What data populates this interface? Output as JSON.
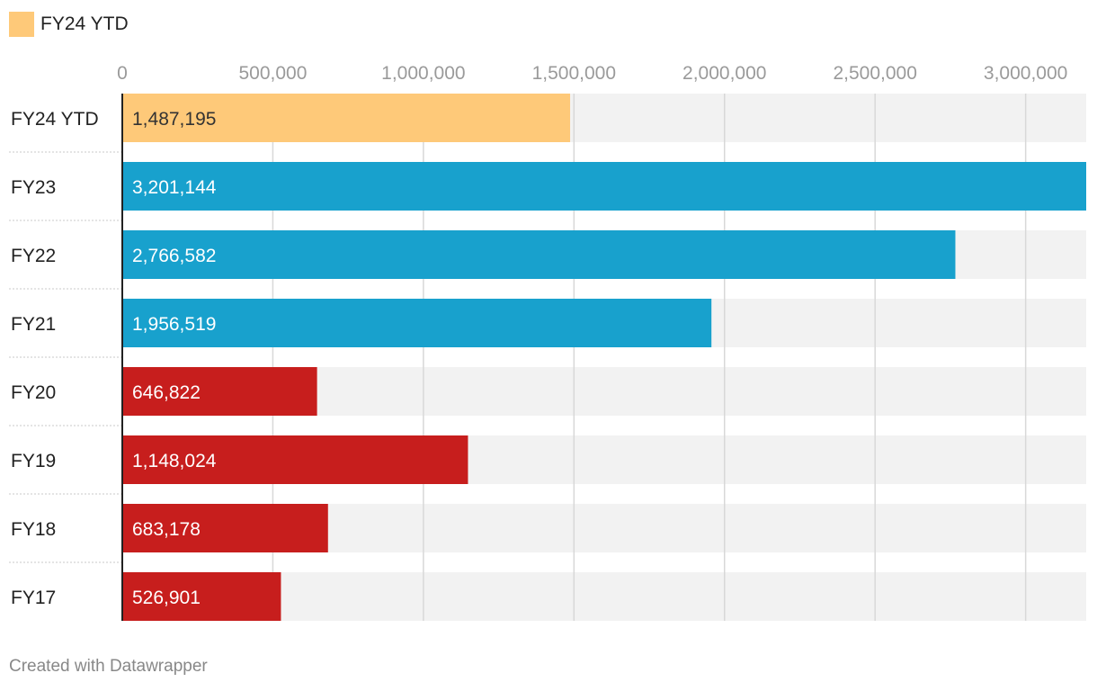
{
  "legend": {
    "label": "FY24 YTD",
    "color": "#fec979"
  },
  "footer": {
    "credit": "Created with Datawrapper"
  },
  "colors": {
    "ytd": "#fec979",
    "recent": "#18a1cd",
    "older": "#c71e1d",
    "track": "#f2f2f2",
    "grid": "#d8d8d8"
  },
  "chart_data": {
    "type": "bar",
    "orientation": "horizontal",
    "title": "",
    "xlabel": "",
    "ylabel": "",
    "xlim": [
      0,
      3201144
    ],
    "ticks": [
      0,
      500000,
      1000000,
      1500000,
      2000000,
      2500000,
      3000000
    ],
    "tick_labels": [
      "0",
      "500,000",
      "1,000,000",
      "1,500,000",
      "2,000,000",
      "2,500,000",
      "3,000,000"
    ],
    "categories": [
      "FY24 YTD",
      "FY23",
      "FY22",
      "FY21",
      "FY20",
      "FY19",
      "FY18",
      "FY17"
    ],
    "values": [
      1487195,
      3201144,
      2766582,
      1956519,
      646822,
      1148024,
      683178,
      526901
    ],
    "value_labels": [
      "1,487,195",
      "3,201,144",
      "2,766,582",
      "1,956,519",
      "646,822",
      "1,148,024",
      "683,178",
      "526,901"
    ],
    "bar_colors": [
      "#fec979",
      "#18a1cd",
      "#18a1cd",
      "#18a1cd",
      "#c71e1d",
      "#c71e1d",
      "#c71e1d",
      "#c71e1d"
    ],
    "value_label_colors": [
      "#333333",
      "#ffffff",
      "#ffffff",
      "#ffffff",
      "#ffffff",
      "#ffffff",
      "#ffffff",
      "#ffffff"
    ],
    "legend": [
      {
        "name": "FY24 YTD",
        "color": "#fec979"
      }
    ],
    "grid": true
  }
}
